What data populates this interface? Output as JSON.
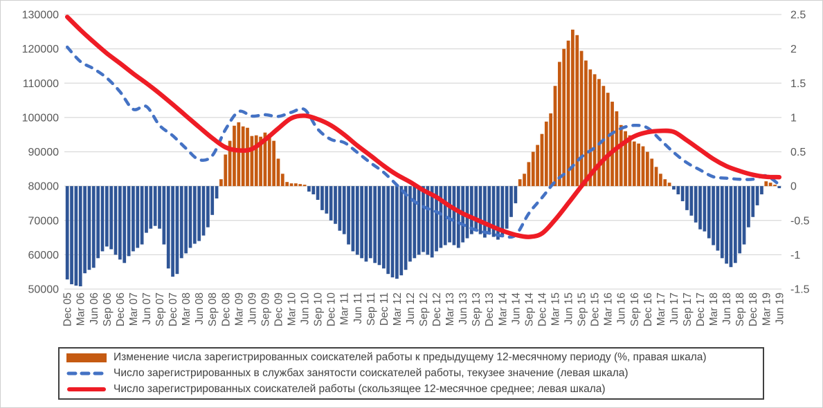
{
  "window": {
    "background": "#ffffff",
    "border_color": "#cfcfcf"
  },
  "chart_data": {
    "type": "bar",
    "subtype": "combo-bar-line-dual-axis",
    "title": "",
    "grid": true,
    "legend_position": "bottom",
    "frequency": {
      "bars": "monthly",
      "lines": "quarterly"
    },
    "x_tick_labels": [
      "Dec 05",
      "Mar 06",
      "Jun 06",
      "Sep 06",
      "Dec 06",
      "Mar 07",
      "Jun 07",
      "Sep 07",
      "Dec 07",
      "Mar 08",
      "Jun 08",
      "Sep 08",
      "Dec 08",
      "Mar 09",
      "Jun 09",
      "Sep 09",
      "Dec 09",
      "Mar 10",
      "Jun 10",
      "Sep 10",
      "Dec 10",
      "Mar 11",
      "Jun 11",
      "Sep 11",
      "Dec 11",
      "Mar 12",
      "Jun 12",
      "Sep 12",
      "Dec 12",
      "Mar 13",
      "Jun 13",
      "Sep 13",
      "Dec 13",
      "Mar 14",
      "Jun 14",
      "Sep 14",
      "Dec 14",
      "Mar 15",
      "Jun 15",
      "Sep 15",
      "Dec 15",
      "Mar 16",
      "Jun 16",
      "Sep 16",
      "Dec 16",
      "Mar 17",
      "Jun 17",
      "Sep 17",
      "Dec 17",
      "Mar 18",
      "Jun 18",
      "Sep 18",
      "Dec 18",
      "Mar 19",
      "Jun 19"
    ],
    "left_axis": {
      "min": 50000,
      "max": 130000,
      "step": 10000,
      "tick_labels": [
        "130000",
        "120000",
        "110000",
        "100000",
        "90000",
        "80000",
        "70000",
        "60000",
        "50000"
      ]
    },
    "right_axis": {
      "min": -1.5,
      "max": 2.5,
      "step": 0.5,
      "zero_at_left_value": 80000,
      "tick_labels": [
        "2.5",
        "2",
        "1.5",
        "1",
        "0.5",
        "0",
        "-0.5",
        "-1",
        "-1.5"
      ]
    },
    "colors": {
      "bar_positive": "#c55a11",
      "bar_negative": "#2f5596",
      "line_current": "#4472c4",
      "line_average": "#ee1c25",
      "grid": "#d9d9d9",
      "axis_text": "#595959"
    },
    "bar_series": {
      "name": "Изменение числа зарегистрированных соискателей работы к предыдущему 12-месячному периоду (%, правая шкала)",
      "axis": "right",
      "values": [
        -1.36,
        -1.43,
        -1.45,
        -1.46,
        -1.27,
        -1.22,
        -1.19,
        -1.05,
        -0.95,
        -0.88,
        -0.92,
        -1.0,
        -1.07,
        -1.12,
        -1.02,
        -0.95,
        -0.9,
        -0.85,
        -0.68,
        -0.62,
        -0.58,
        -0.62,
        -0.85,
        -1.2,
        -1.32,
        -1.28,
        -1.05,
        -0.98,
        -0.9,
        -0.84,
        -0.8,
        -0.72,
        -0.6,
        -0.42,
        -0.18,
        0.1,
        0.46,
        0.66,
        0.88,
        0.93,
        0.87,
        0.85,
        0.73,
        0.74,
        0.72,
        0.78,
        0.76,
        0.66,
        0.4,
        0.18,
        0.06,
        0.04,
        0.04,
        0.03,
        0.02,
        -0.08,
        -0.12,
        -0.2,
        -0.35,
        -0.4,
        -0.5,
        -0.55,
        -0.65,
        -0.7,
        -0.85,
        -0.95,
        -1.0,
        -1.05,
        -1.1,
        -1.05,
        -1.12,
        -1.15,
        -1.2,
        -1.28,
        -1.33,
        -1.35,
        -1.3,
        -1.22,
        -1.1,
        -1.05,
        -1.0,
        -0.96,
        -1.0,
        -1.04,
        -0.95,
        -0.9,
        -0.86,
        -0.82,
        -0.86,
        -0.9,
        -0.82,
        -0.76,
        -0.7,
        -0.66,
        -0.7,
        -0.75,
        -0.7,
        -0.74,
        -0.78,
        -0.74,
        -0.62,
        -0.45,
        -0.25,
        0.1,
        0.18,
        0.35,
        0.5,
        0.6,
        0.76,
        0.94,
        1.06,
        1.46,
        1.81,
        2.0,
        2.12,
        2.28,
        2.2,
        1.97,
        1.83,
        1.7,
        1.63,
        1.56,
        1.46,
        1.36,
        1.23,
        1.09,
        0.89,
        0.8,
        0.74,
        0.65,
        0.62,
        0.58,
        0.5,
        0.4,
        0.28,
        0.18,
        0.1,
        0.05,
        -0.05,
        -0.12,
        -0.22,
        -0.35,
        -0.43,
        -0.53,
        -0.63,
        -0.66,
        -0.76,
        -0.86,
        -0.94,
        -1.05,
        -1.13,
        -1.18,
        -1.12,
        -0.98,
        -0.85,
        -0.6,
        -0.45,
        -0.28,
        -0.12,
        0.07,
        0.05,
        0.02,
        -0.03
      ]
    },
    "line_series": [
      {
        "name": "Число зарегистрированных в службах занятости соискателей работы, текузее значение (левая шкала)",
        "axis": "left",
        "style": "dashed",
        "values": [
          120500,
          116300,
          114200,
          111500,
          107500,
          102400,
          103200,
          97700,
          94700,
          91000,
          87700,
          88900,
          96500,
          101700,
          100400,
          100800,
          100300,
          101500,
          102300,
          96600,
          93600,
          92700,
          89800,
          86800,
          84000,
          80300,
          76500,
          74000,
          72500,
          70500,
          68800,
          67200,
          66300,
          65500,
          65700,
          72000,
          76600,
          81300,
          84500,
          88500,
          91200,
          94500,
          96800,
          97700,
          97000,
          93400,
          89800,
          86800,
          84700,
          82700,
          82300,
          82000,
          82000,
          83000,
          80400
        ]
      },
      {
        "name": "Число зарегистрированных соискателей работы (скользящее 12-месячное среднее; левая шкала)",
        "axis": "left",
        "style": "solid",
        "values": [
          129300,
          125500,
          122000,
          118700,
          115800,
          112800,
          110000,
          107000,
          103800,
          100500,
          97200,
          94000,
          91300,
          90400,
          90800,
          93500,
          96800,
          99800,
          100500,
          99500,
          97700,
          95000,
          91800,
          88900,
          85900,
          83300,
          81200,
          78800,
          76800,
          74200,
          72000,
          70300,
          68600,
          67000,
          65800,
          65200,
          66200,
          70200,
          75000,
          80000,
          84800,
          88900,
          92000,
          94500,
          95700,
          96100,
          95800,
          93300,
          90600,
          87900,
          85800,
          84400,
          83300,
          82700,
          82600
        ]
      }
    ]
  }
}
